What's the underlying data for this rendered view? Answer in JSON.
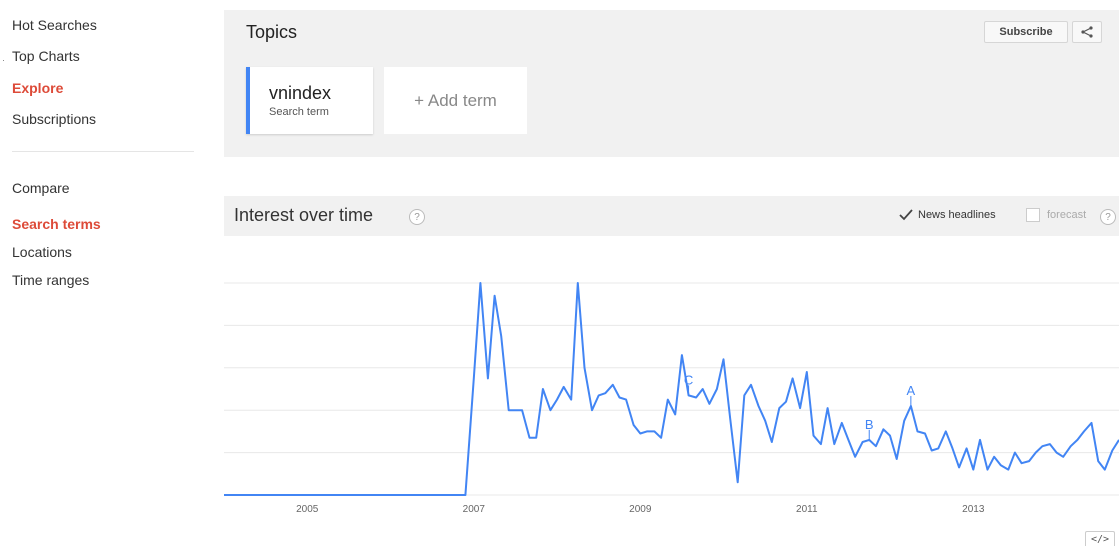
{
  "sidebar": {
    "items": [
      {
        "label": "Hot Searches",
        "active": false
      },
      {
        "label": "Top Charts",
        "active": false
      },
      {
        "label": "Explore",
        "active": true
      },
      {
        "label": "Subscriptions",
        "active": false
      }
    ],
    "compare_label": "Compare",
    "compare_items": [
      {
        "label": "Search terms",
        "active": true
      },
      {
        "label": "Locations",
        "active": false
      },
      {
        "label": "Time ranges",
        "active": false
      }
    ]
  },
  "topics": {
    "title": "Topics",
    "subscribe_label": "Subscribe",
    "share_icon": "share-icon",
    "term": {
      "name": "vnindex",
      "type": "Search term",
      "color": "#4285f4"
    },
    "add_term_label": "+ Add term"
  },
  "interest": {
    "title": "Interest over time",
    "help_glyph": "?",
    "news_headlines_label": "News headlines",
    "news_headlines_checked": true,
    "forecast_label": "forecast",
    "forecast_checked": false,
    "embed_label": "</>"
  },
  "colors": {
    "accent_red": "#dd4b39",
    "series_blue": "#4285f4",
    "panel_bg": "#f1f1f1"
  },
  "chart_data": {
    "type": "line",
    "title": "",
    "xlabel": "",
    "ylabel": "",
    "x_tick_labels": [
      "2005",
      "2007",
      "2009",
      "2011",
      "2013"
    ],
    "x_range": [
      2004.0,
      2014.75
    ],
    "ylim": [
      0,
      100
    ],
    "grid": true,
    "series": [
      {
        "values": [
          [
            2004.0,
            0
          ],
          [
            2006.9,
            0
          ],
          [
            2007.0,
            55
          ],
          [
            2007.08,
            100
          ],
          [
            2007.17,
            55
          ],
          [
            2007.25,
            94
          ],
          [
            2007.33,
            75
          ],
          [
            2007.42,
            40
          ],
          [
            2007.5,
            40
          ],
          [
            2007.58,
            40
          ],
          [
            2007.67,
            27
          ],
          [
            2007.75,
            27
          ],
          [
            2007.83,
            50
          ],
          [
            2007.92,
            40
          ],
          [
            2008.0,
            45
          ],
          [
            2008.08,
            51
          ],
          [
            2008.17,
            45
          ],
          [
            2008.25,
            100
          ],
          [
            2008.33,
            60
          ],
          [
            2008.42,
            40
          ],
          [
            2008.5,
            47
          ],
          [
            2008.58,
            48
          ],
          [
            2008.67,
            52
          ],
          [
            2008.75,
            46
          ],
          [
            2008.83,
            45
          ],
          [
            2008.92,
            33
          ],
          [
            2009.0,
            29
          ],
          [
            2009.08,
            30
          ],
          [
            2009.17,
            30
          ],
          [
            2009.25,
            27
          ],
          [
            2009.33,
            45
          ],
          [
            2009.42,
            38
          ],
          [
            2009.5,
            66
          ],
          [
            2009.58,
            47
          ],
          [
            2009.67,
            46
          ],
          [
            2009.75,
            50
          ],
          [
            2009.83,
            43
          ],
          [
            2009.92,
            50
          ],
          [
            2010.0,
            64
          ],
          [
            2010.08,
            36
          ],
          [
            2010.17,
            6
          ],
          [
            2010.25,
            47
          ],
          [
            2010.33,
            52
          ],
          [
            2010.42,
            42
          ],
          [
            2010.5,
            35
          ],
          [
            2010.58,
            25
          ],
          [
            2010.67,
            41
          ],
          [
            2010.75,
            44
          ],
          [
            2010.83,
            55
          ],
          [
            2010.92,
            41
          ],
          [
            2011.0,
            58
          ],
          [
            2011.08,
            28
          ],
          [
            2011.17,
            24
          ],
          [
            2011.25,
            41
          ],
          [
            2011.33,
            24
          ],
          [
            2011.42,
            34
          ],
          [
            2011.5,
            26
          ],
          [
            2011.58,
            18
          ],
          [
            2011.67,
            25
          ],
          [
            2011.75,
            26
          ],
          [
            2011.83,
            23
          ],
          [
            2011.92,
            31
          ],
          [
            2012.0,
            28
          ],
          [
            2012.08,
            17
          ],
          [
            2012.17,
            35
          ],
          [
            2012.25,
            42
          ],
          [
            2012.33,
            30
          ],
          [
            2012.42,
            29
          ],
          [
            2012.5,
            21
          ],
          [
            2012.58,
            22
          ],
          [
            2012.67,
            30
          ],
          [
            2012.75,
            22
          ],
          [
            2012.83,
            13
          ],
          [
            2012.92,
            22
          ],
          [
            2013.0,
            12
          ],
          [
            2013.08,
            26
          ],
          [
            2013.17,
            12
          ],
          [
            2013.25,
            18
          ],
          [
            2013.33,
            14
          ],
          [
            2013.42,
            12
          ],
          [
            2013.5,
            20
          ],
          [
            2013.58,
            15
          ],
          [
            2013.67,
            16
          ],
          [
            2013.75,
            20
          ],
          [
            2013.83,
            23
          ],
          [
            2013.92,
            24
          ],
          [
            2014.0,
            20
          ],
          [
            2014.08,
            18
          ],
          [
            2014.17,
            23
          ],
          [
            2014.25,
            26
          ],
          [
            2014.33,
            30
          ],
          [
            2014.42,
            34
          ],
          [
            2014.5,
            16
          ],
          [
            2014.58,
            12
          ],
          [
            2014.67,
            21
          ],
          [
            2014.75,
            26
          ]
        ]
      }
    ],
    "annotations": [
      {
        "label": "C",
        "x": 2009.58,
        "y": 47
      },
      {
        "label": "B",
        "x": 2011.75,
        "y": 26
      },
      {
        "label": "A",
        "x": 2012.25,
        "y": 42
      }
    ]
  }
}
